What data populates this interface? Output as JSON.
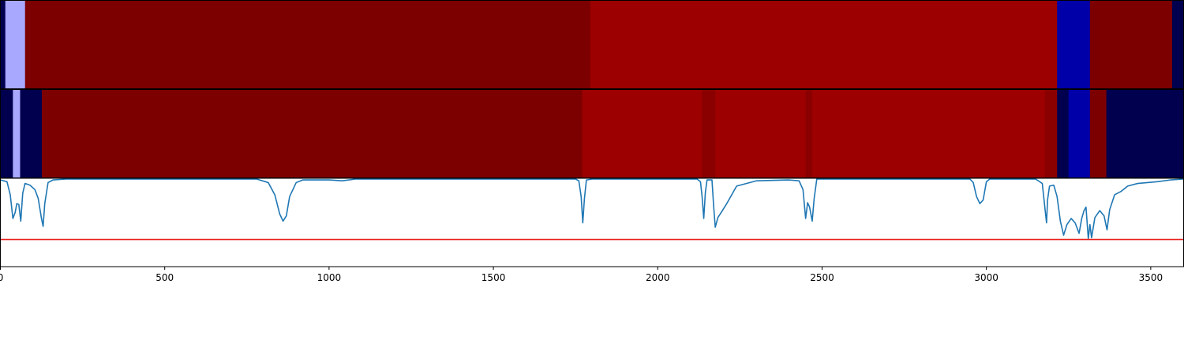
{
  "chart_data": {
    "type": "heatmap",
    "x_ticks": [
      0,
      500,
      1000,
      1500,
      2000,
      2500,
      3000,
      3500
    ],
    "xlim": [
      0,
      3600
    ],
    "colors": {
      "dark_blue": "#00004f",
      "blue": "#0000a8",
      "light_blue": "#a8a8ff",
      "dark_red": "#7d0000",
      "red": "#9c0000",
      "mid_red": "#8a0000",
      "line": "#1f77b4",
      "threshold": "#e8211a"
    },
    "rows": [
      {
        "segments": [
          {
            "x0": 0,
            "x1": 15,
            "color": "dark_blue"
          },
          {
            "x0": 15,
            "x1": 75,
            "color": "light_blue"
          },
          {
            "x0": 75,
            "x1": 1795,
            "color": "dark_red"
          },
          {
            "x0": 1795,
            "x1": 3215,
            "color": "red"
          },
          {
            "x0": 3215,
            "x1": 3315,
            "color": "blue"
          },
          {
            "x0": 3315,
            "x1": 3565,
            "color": "dark_red"
          },
          {
            "x0": 3565,
            "x1": 3600,
            "color": "dark_blue"
          }
        ]
      },
      {
        "segments": [
          {
            "x0": 0,
            "x1": 38,
            "color": "dark_blue"
          },
          {
            "x0": 38,
            "x1": 60,
            "color": "light_blue"
          },
          {
            "x0": 60,
            "x1": 126,
            "color": "dark_blue"
          },
          {
            "x0": 126,
            "x1": 1770,
            "color": "dark_red"
          },
          {
            "x0": 1770,
            "x1": 2135,
            "color": "red"
          },
          {
            "x0": 2135,
            "x1": 2175,
            "color": "mid_red"
          },
          {
            "x0": 2175,
            "x1": 2450,
            "color": "red"
          },
          {
            "x0": 2450,
            "x1": 2470,
            "color": "mid_red"
          },
          {
            "x0": 2470,
            "x1": 3178,
            "color": "red"
          },
          {
            "x0": 3178,
            "x1": 3215,
            "color": "mid_red"
          },
          {
            "x0": 3215,
            "x1": 3250,
            "color": "dark_blue"
          },
          {
            "x0": 3250,
            "x1": 3315,
            "color": "blue"
          },
          {
            "x0": 3315,
            "x1": 3365,
            "color": "dark_red"
          },
          {
            "x0": 3365,
            "x1": 3600,
            "color": "dark_blue"
          }
        ]
      }
    ],
    "line_panel": {
      "ylim": [
        0,
        1
      ],
      "threshold": 0.31,
      "series": [
        [
          0,
          0.99
        ],
        [
          20,
          0.97
        ],
        [
          30,
          0.82
        ],
        [
          38,
          0.55
        ],
        [
          45,
          0.62
        ],
        [
          50,
          0.72
        ],
        [
          56,
          0.71
        ],
        [
          62,
          0.52
        ],
        [
          68,
          0.84
        ],
        [
          75,
          0.95
        ],
        [
          90,
          0.93
        ],
        [
          105,
          0.88
        ],
        [
          115,
          0.78
        ],
        [
          125,
          0.55
        ],
        [
          130,
          0.46
        ],
        [
          135,
          0.72
        ],
        [
          145,
          0.96
        ],
        [
          160,
          0.99
        ],
        [
          200,
          1.0
        ],
        [
          780,
          1.0
        ],
        [
          815,
          0.96
        ],
        [
          835,
          0.82
        ],
        [
          850,
          0.6
        ],
        [
          860,
          0.52
        ],
        [
          870,
          0.58
        ],
        [
          880,
          0.8
        ],
        [
          900,
          0.96
        ],
        [
          920,
          0.99
        ],
        [
          1000,
          0.99
        ],
        [
          1040,
          0.98
        ],
        [
          1080,
          1.0
        ],
        [
          1750,
          1.0
        ],
        [
          1760,
          0.98
        ],
        [
          1767,
          0.8
        ],
        [
          1772,
          0.5
        ],
        [
          1777,
          0.78
        ],
        [
          1783,
          0.99
        ],
        [
          1800,
          1.0
        ],
        [
          2120,
          1.0
        ],
        [
          2130,
          0.97
        ],
        [
          2135,
          0.8
        ],
        [
          2140,
          0.55
        ],
        [
          2145,
          0.85
        ],
        [
          2150,
          0.99
        ],
        [
          2165,
          0.99
        ],
        [
          2170,
          0.7
        ],
        [
          2175,
          0.45
        ],
        [
          2183,
          0.56
        ],
        [
          2195,
          0.63
        ],
        [
          2210,
          0.72
        ],
        [
          2240,
          0.92
        ],
        [
          2300,
          0.98
        ],
        [
          2400,
          0.99
        ],
        [
          2430,
          0.98
        ],
        [
          2442,
          0.88
        ],
        [
          2450,
          0.55
        ],
        [
          2456,
          0.73
        ],
        [
          2462,
          0.68
        ],
        [
          2470,
          0.52
        ],
        [
          2476,
          0.78
        ],
        [
          2484,
          1.0
        ],
        [
          2950,
          1.0
        ],
        [
          2960,
          0.96
        ],
        [
          2970,
          0.8
        ],
        [
          2980,
          0.72
        ],
        [
          2990,
          0.76
        ],
        [
          3000,
          0.97
        ],
        [
          3010,
          1.0
        ],
        [
          3150,
          1.0
        ],
        [
          3170,
          0.95
        ],
        [
          3180,
          0.6
        ],
        [
          3183,
          0.5
        ],
        [
          3186,
          0.76
        ],
        [
          3192,
          0.92
        ],
        [
          3205,
          0.93
        ],
        [
          3215,
          0.8
        ],
        [
          3225,
          0.52
        ],
        [
          3235,
          0.36
        ],
        [
          3245,
          0.48
        ],
        [
          3258,
          0.55
        ],
        [
          3270,
          0.5
        ],
        [
          3282,
          0.38
        ],
        [
          3290,
          0.55
        ],
        [
          3297,
          0.64
        ],
        [
          3303,
          0.68
        ],
        [
          3310,
          0.32
        ],
        [
          3315,
          0.48
        ],
        [
          3320,
          0.33
        ],
        [
          3330,
          0.56
        ],
        [
          3345,
          0.64
        ],
        [
          3358,
          0.58
        ],
        [
          3367,
          0.42
        ],
        [
          3375,
          0.65
        ],
        [
          3390,
          0.82
        ],
        [
          3410,
          0.86
        ],
        [
          3430,
          0.92
        ],
        [
          3460,
          0.95
        ],
        [
          3490,
          0.96
        ],
        [
          3520,
          0.97
        ],
        [
          3560,
          0.99
        ],
        [
          3600,
          1.0
        ]
      ]
    }
  }
}
